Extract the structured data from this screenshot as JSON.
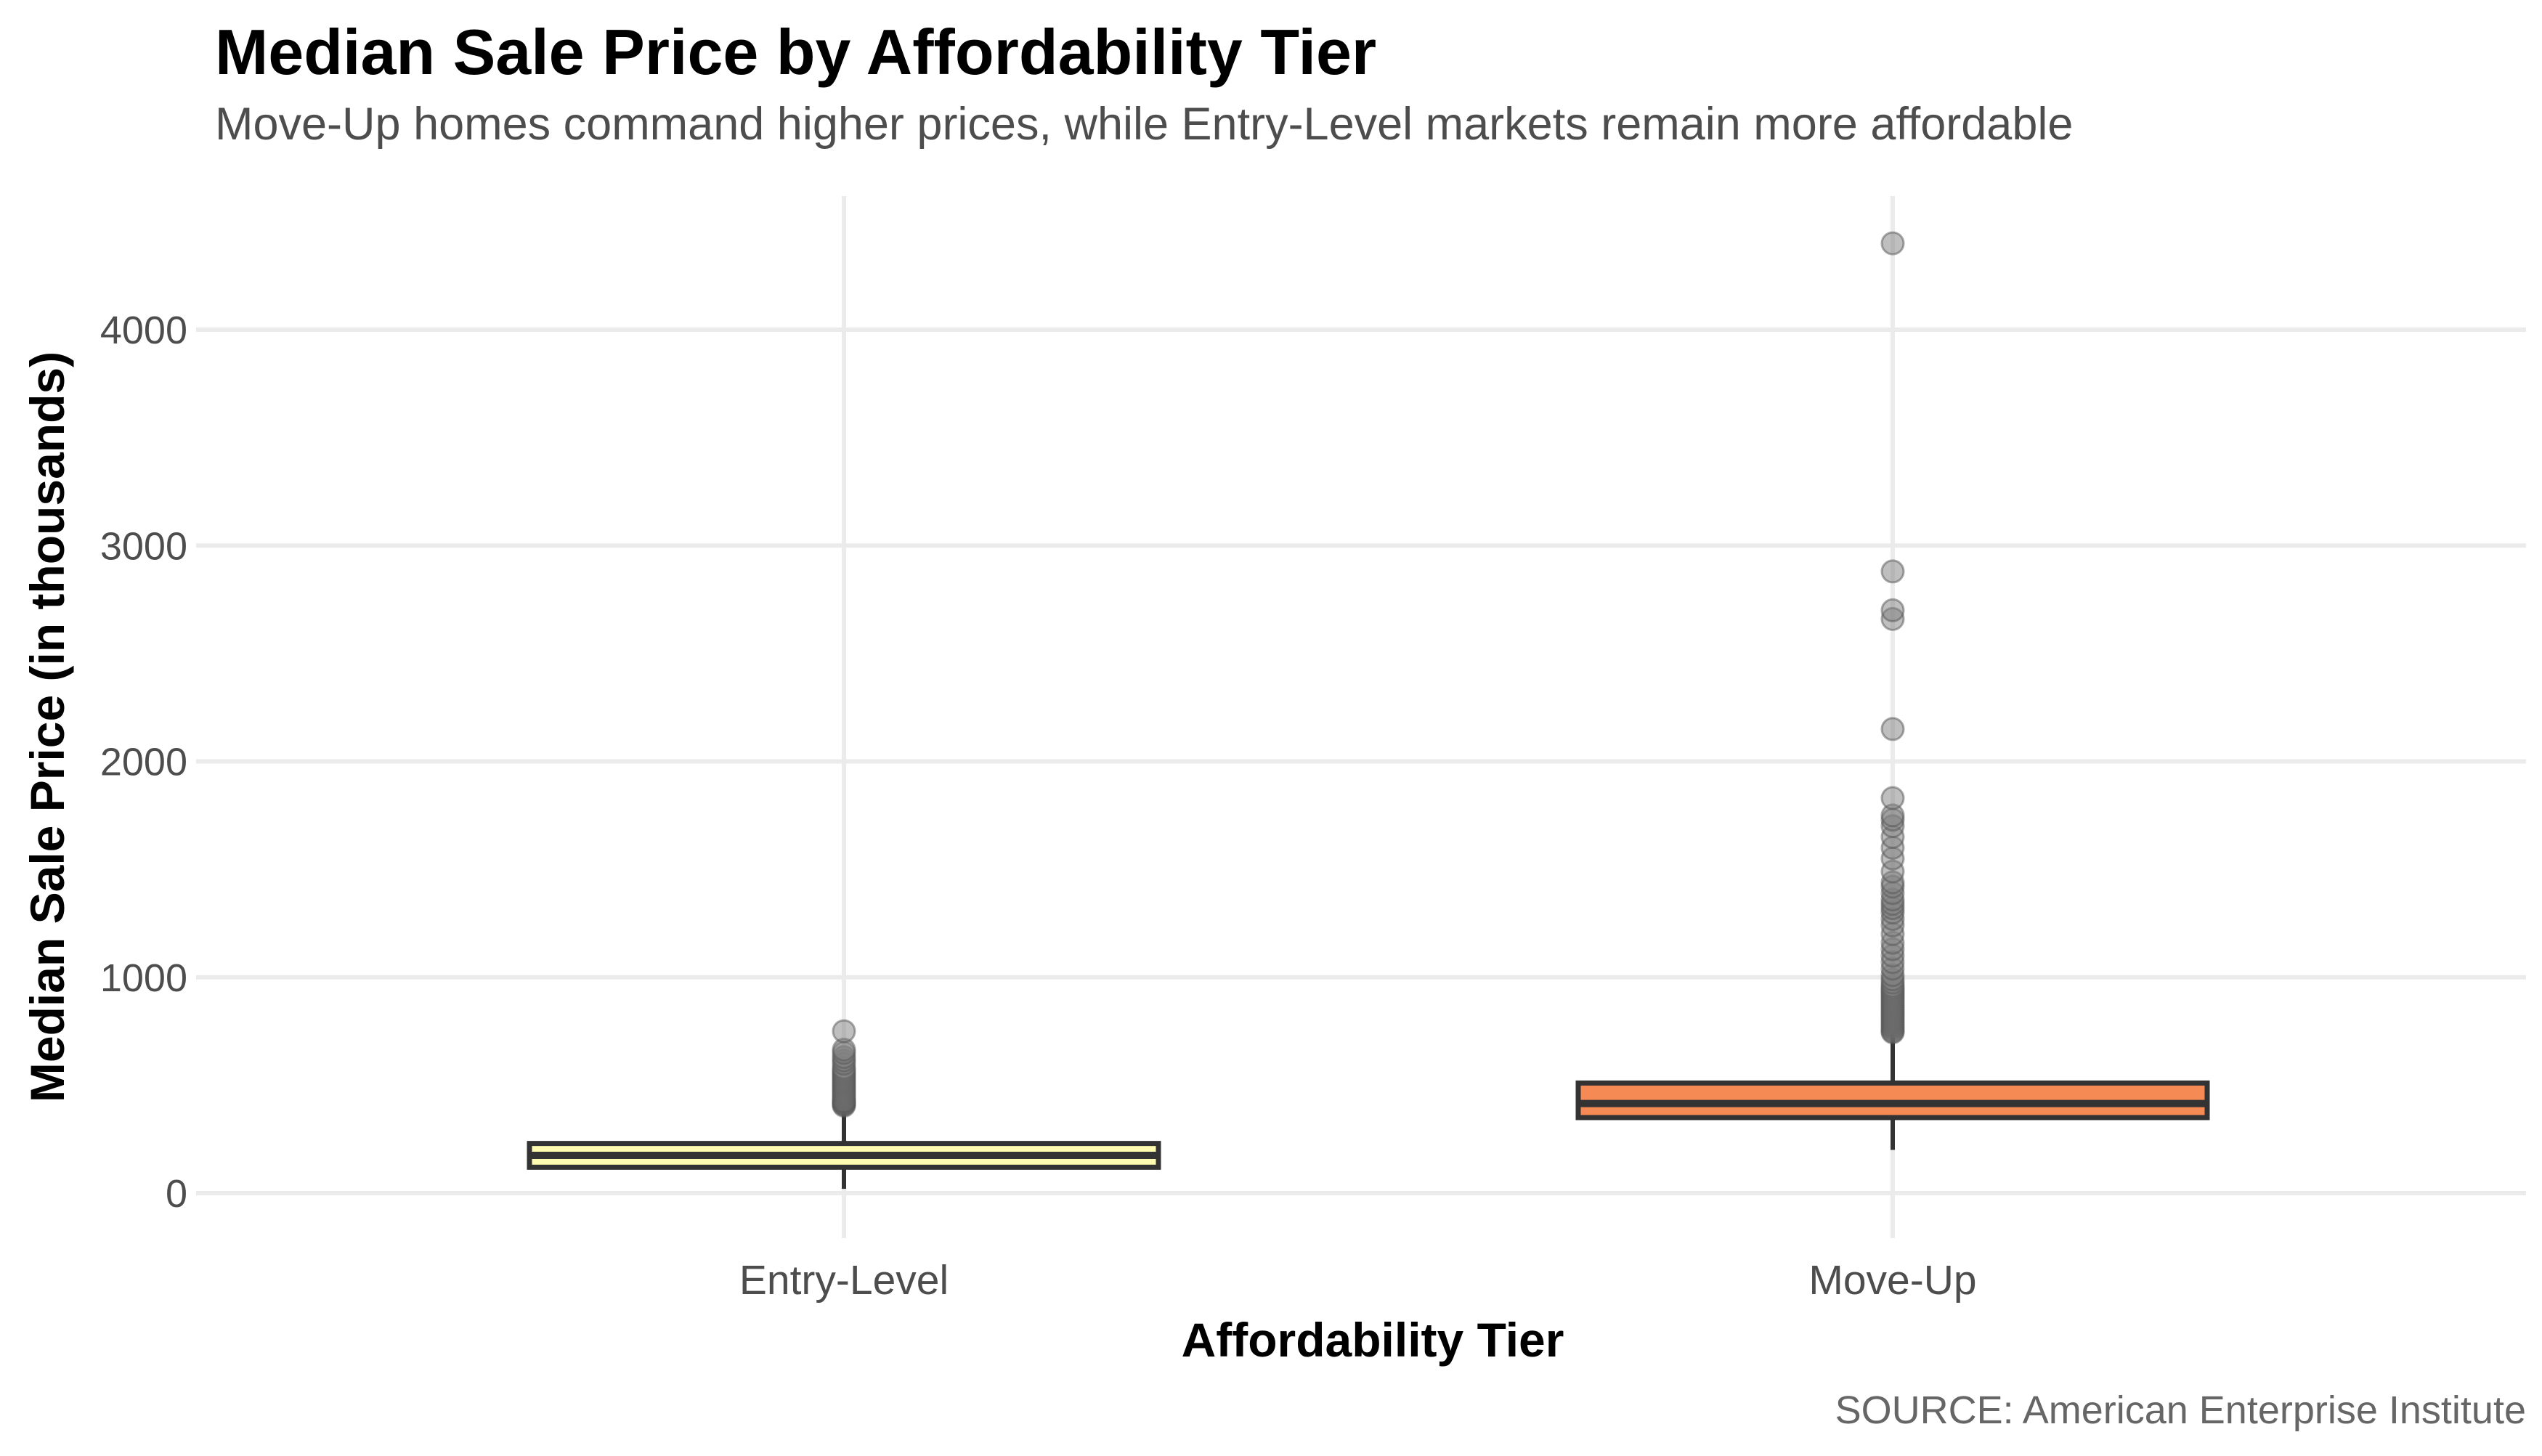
{
  "chart_data": {
    "type": "box",
    "title": "Median Sale Price by Affordability Tier",
    "subtitle": "Move-Up homes command higher prices, while Entry-Level markets remain more affordable",
    "xlabel": "Affordability Tier",
    "ylabel": "Median Sale Price (in thousands)",
    "source": "SOURCE: American Enterprise Institute",
    "ylim": [
      -150,
      4620
    ],
    "yticks": [
      0,
      1000,
      2000,
      3000,
      4000
    ],
    "grid": true,
    "legend": "none",
    "categories": [
      "Entry-Level",
      "Move-Up"
    ],
    "boxes": [
      {
        "category": "Entry-Level",
        "color": "#FFFBB0",
        "whisker_low": 20,
        "q1": 120,
        "median": 175,
        "q3": 230,
        "whisker_high": 400,
        "outliers": [
          405,
          410,
          415,
          420,
          425,
          430,
          440,
          450,
          460,
          470,
          480,
          490,
          500,
          510,
          520,
          530,
          540,
          550,
          560,
          570,
          580,
          600,
          615,
          630,
          650,
          665,
          750
        ]
      },
      {
        "category": "Move-Up",
        "color": "#F58A55",
        "whisker_low": 200,
        "q1": 350,
        "median": 415,
        "q3": 510,
        "whisker_high": 740,
        "outliers": [
          745,
          750,
          760,
          770,
          780,
          790,
          800,
          810,
          820,
          830,
          840,
          850,
          860,
          870,
          880,
          890,
          900,
          910,
          920,
          930,
          940,
          950,
          960,
          975,
          990,
          1010,
          1040,
          1070,
          1100,
          1130,
          1160,
          1200,
          1240,
          1270,
          1300,
          1320,
          1340,
          1360,
          1390,
          1420,
          1440,
          1490,
          1550,
          1600,
          1650,
          1700,
          1730,
          1750,
          1830,
          2150,
          2660,
          2700,
          2880,
          4400
        ]
      }
    ]
  }
}
